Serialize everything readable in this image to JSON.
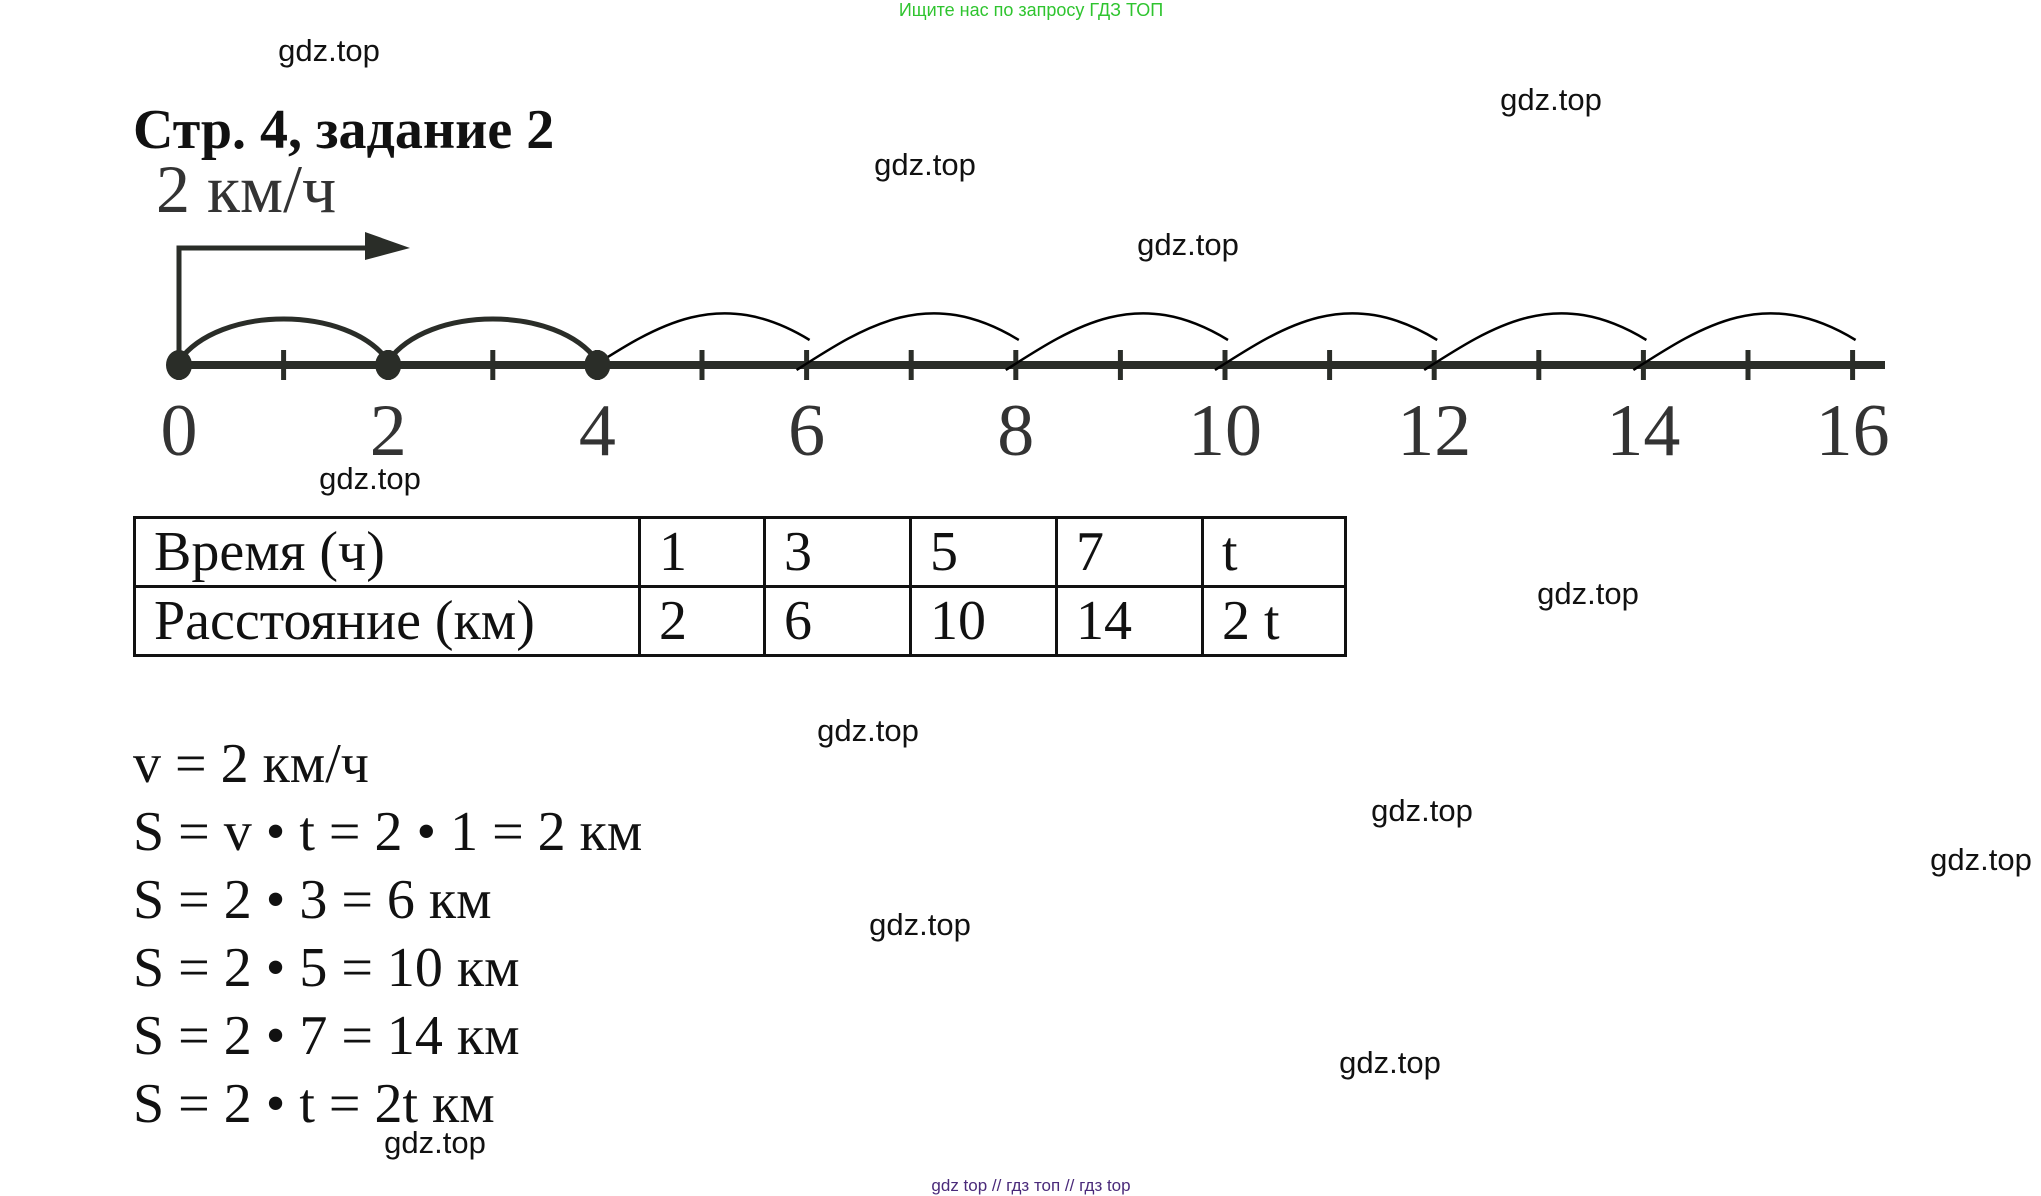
{
  "header_note": "Ищите нас по запросу ГДЗ ТОП",
  "footer_note": "gdz top  //  гдз топ  //  гдз top",
  "watermark": "gdz.top",
  "title": "Стр. 4, задание 2",
  "figure": {
    "speed_label": "2 км/ч",
    "axis_labels": [
      "0",
      "2",
      "4",
      "6",
      "8",
      "10",
      "12",
      "14",
      "16"
    ],
    "axis_max": 16,
    "thick_jumps": [
      [
        0,
        2
      ],
      [
        2,
        4
      ]
    ],
    "thin_jumps": [
      [
        4,
        6
      ],
      [
        6,
        8
      ],
      [
        8,
        10
      ],
      [
        10,
        12
      ],
      [
        12,
        14
      ],
      [
        14,
        16
      ]
    ],
    "marked_points": [
      0,
      2,
      4
    ]
  },
  "table": {
    "rows": [
      [
        "Время (ч)",
        "1",
        "3",
        "5",
        "7",
        "t"
      ],
      [
        "Расстояние (км)",
        "2",
        "6",
        "10",
        "14",
        "2 t"
      ]
    ]
  },
  "equations": [
    "v = 2 км/ч",
    "S = v • t = 2 • 1 = 2 км",
    "S = 2 • 3 = 6 км",
    "S = 2 • 5 = 10 км",
    "S = 2 • 7 = 14 км",
    "S = 2 • t = 2t км"
  ]
}
